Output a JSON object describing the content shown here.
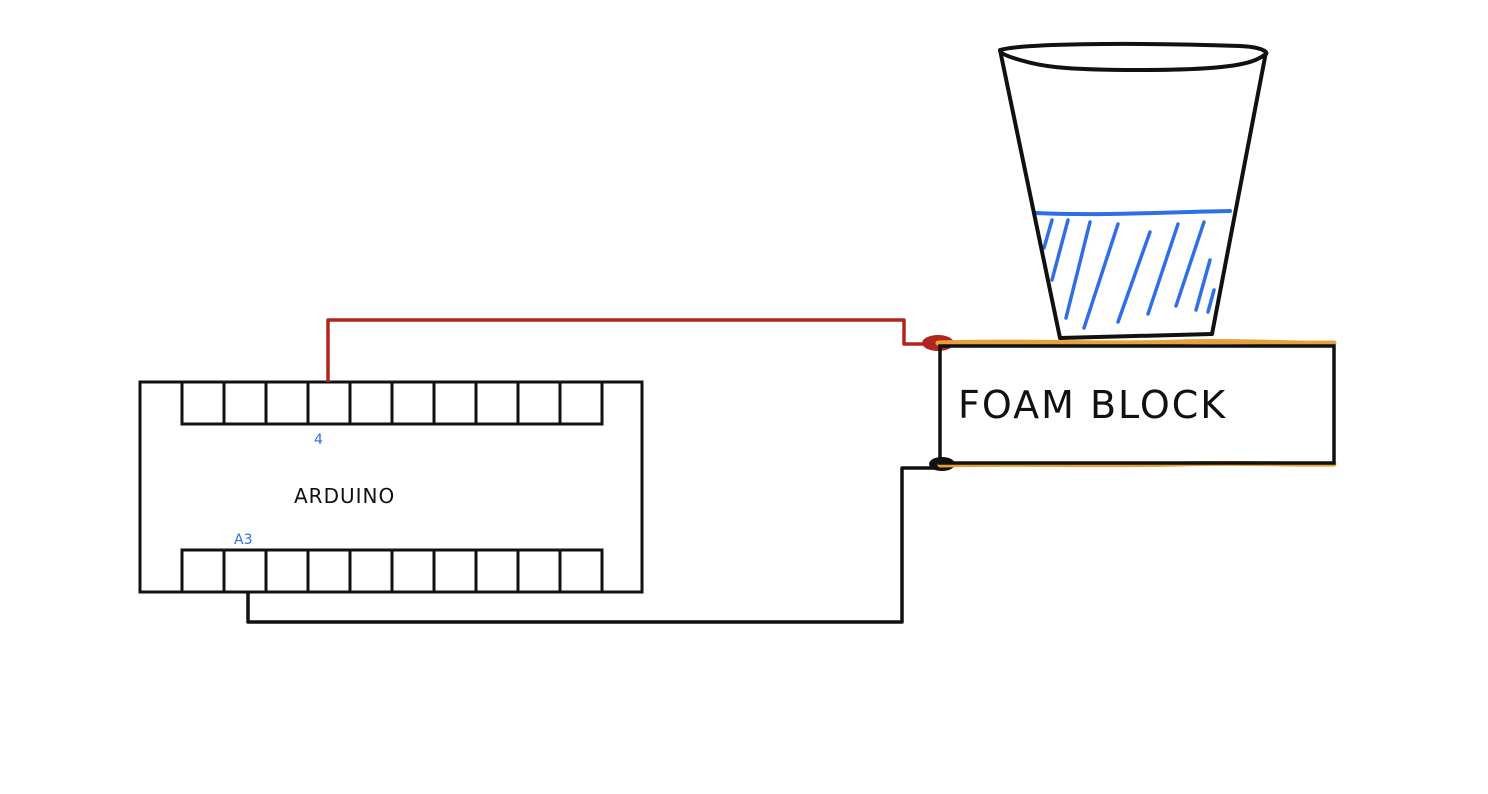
{
  "diagram": {
    "arduino": {
      "label": "ARDUINO",
      "top_pin_label": "4",
      "bottom_pin_label": "A3"
    },
    "foam_block": {
      "label": "FOAM BLOCK"
    },
    "colors": {
      "ink": "#111111",
      "red_wire": "#b0261f",
      "water": "#2f6fe6",
      "pin_label": "#2f6fe6",
      "electrode": "#e8a13a"
    }
  }
}
